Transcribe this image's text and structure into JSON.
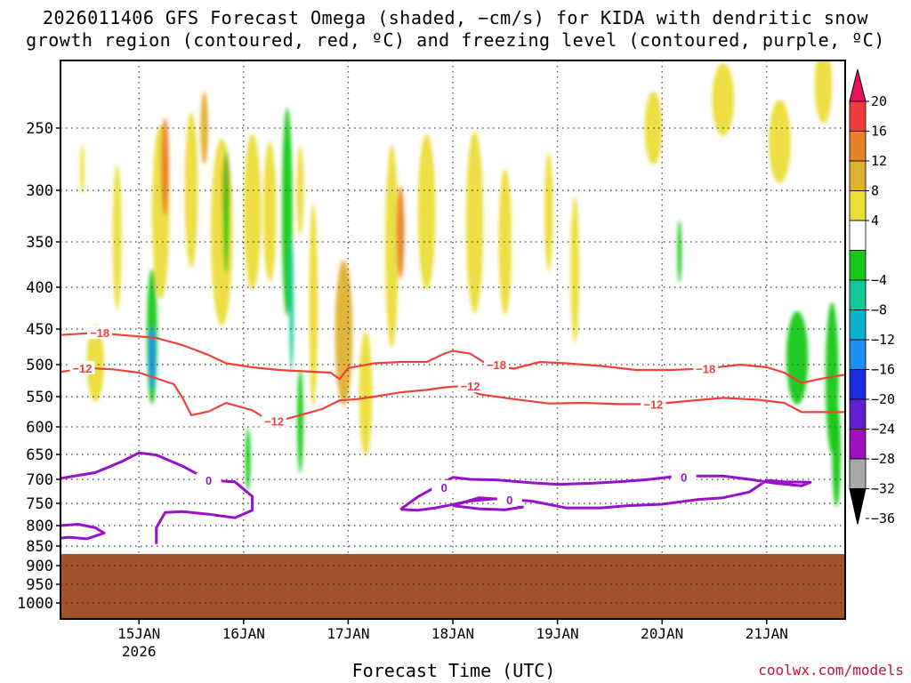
{
  "chart_data": {
    "type": "heatmap",
    "title": "2026011406 GFS Forecast Omega (shaded, −cm/s) for KIDA with dendritic snow growth region (contoured, red, ºC) and freezing level (contoured, purple, ºC)",
    "title_line1": "2026011406 GFS Forecast Omega (shaded, −cm/s) for KIDA with dendritic snow",
    "title_line2": "growth region (contoured, red, ºC) and freezing level (contoured, purple, ºC)",
    "xlabel": "Forecast Time (UTC)",
    "credit": "coolwx.com/models",
    "x_range_hours": [
      0,
      180
    ],
    "x_ticks": [
      {
        "label": "15JAN",
        "sublabel": "2026",
        "hour": 18
      },
      {
        "label": "16JAN",
        "hour": 42
      },
      {
        "label": "17JAN",
        "hour": 66
      },
      {
        "label": "18JAN",
        "hour": 90
      },
      {
        "label": "19JAN",
        "hour": 114
      },
      {
        "label": "20JAN",
        "hour": 138
      },
      {
        "label": "21JAN",
        "hour": 162
      }
    ],
    "y_ticks": [
      "250",
      "300",
      "350",
      "400",
      "450",
      "500",
      "550",
      "600",
      "650",
      "700",
      "750",
      "800",
      "850",
      "900",
      "950",
      "1000"
    ],
    "ylim_hpa": [
      200,
      1040
    ],
    "terrain_top_hpa": 870,
    "colorbar": {
      "labels": [
        "20",
        "16",
        "12",
        "8",
        "4",
        "−4",
        "−8",
        "−12",
        "−16",
        "−20",
        "−24",
        "−28",
        "−32",
        "−36"
      ],
      "colors": [
        "#e8105c",
        "#f03c3c",
        "#e8822a",
        "#e0b030",
        "#ebdc38",
        "#ffffff",
        "#18c818",
        "#14c896",
        "#0cb0cc",
        "#1a8ef0",
        "#1a2ee0",
        "#6020d0",
        "#9c10c0",
        "#a8a8a8",
        "#000000"
      ]
    },
    "colors": {
      "dgz": "#f0403c",
      "freezing": "#9810c8",
      "terrain": "#a0522d",
      "gridline": "#555555"
    },
    "dgz_contours": [
      {
        "label": "−18",
        "label_positions": [
          [
            9,
            0
          ],
          [
            100,
            1
          ],
          [
            148,
            1
          ]
        ],
        "points": [
          [
            0,
            458
          ],
          [
            8,
            455
          ],
          [
            14,
            458
          ],
          [
            22,
            462
          ],
          [
            28,
            472
          ],
          [
            34,
            486
          ],
          [
            38,
            498
          ],
          [
            44,
            504
          ],
          [
            50,
            508
          ],
          [
            56,
            510
          ],
          [
            62,
            512
          ],
          [
            64,
            522
          ],
          [
            66,
            505
          ],
          [
            72,
            498
          ],
          [
            78,
            496
          ],
          [
            84,
            496
          ],
          [
            88,
            484
          ],
          [
            90,
            480
          ],
          [
            94,
            484
          ],
          [
            98,
            500
          ],
          [
            104,
            506
          ],
          [
            110,
            496
          ],
          [
            116,
            498
          ],
          [
            124,
            502
          ],
          [
            132,
            508
          ],
          [
            140,
            508
          ],
          [
            148,
            506
          ],
          [
            156,
            500
          ],
          [
            162,
            504
          ],
          [
            166,
            512
          ],
          [
            170,
            528
          ],
          [
            174,
            522
          ],
          [
            180,
            515
          ]
        ]
      },
      {
        "label": "−12",
        "label_positions": [
          [
            5,
            0
          ],
          [
            49,
            1
          ],
          [
            94,
            1
          ],
          [
            136,
            1
          ]
        ],
        "points": [
          [
            0,
            511
          ],
          [
            6,
            505
          ],
          [
            12,
            507
          ],
          [
            18,
            512
          ],
          [
            22,
            521
          ],
          [
            26,
            530
          ],
          [
            28,
            552
          ],
          [
            30,
            580
          ],
          [
            34,
            574
          ],
          [
            38,
            560
          ],
          [
            44,
            572
          ],
          [
            48,
            590
          ],
          [
            52,
            586
          ],
          [
            56,
            578
          ],
          [
            60,
            570
          ],
          [
            64,
            556
          ],
          [
            68,
            554
          ],
          [
            72,
            550
          ],
          [
            78,
            543
          ],
          [
            84,
            539
          ],
          [
            88,
            535
          ],
          [
            92,
            533
          ],
          [
            96,
            546
          ],
          [
            104,
            554
          ],
          [
            112,
            561
          ],
          [
            120,
            560
          ],
          [
            128,
            562
          ],
          [
            136,
            562
          ],
          [
            144,
            557
          ],
          [
            152,
            552
          ],
          [
            160,
            555
          ],
          [
            166,
            560
          ],
          [
            170,
            575
          ],
          [
            174,
            575
          ],
          [
            180,
            575
          ]
        ]
      }
    ],
    "freezing_contours": [
      {
        "label": "0",
        "label_positions": [
          [
            34,
            1
          ]
        ],
        "points": [
          [
            0,
            698
          ],
          [
            8,
            686
          ],
          [
            14,
            664
          ],
          [
            18,
            647
          ],
          [
            22,
            651
          ],
          [
            28,
            673
          ],
          [
            34,
            702
          ],
          [
            40,
            705
          ],
          [
            44,
            735
          ],
          [
            44,
            765
          ],
          [
            40,
            782
          ],
          [
            34,
            774
          ],
          [
            28,
            768
          ],
          [
            24,
            770
          ],
          [
            22,
            805
          ],
          [
            22,
            845
          ]
        ]
      },
      {
        "label": "0",
        "label_positions": [
          [
            88,
            1
          ],
          [
            143,
            1
          ]
        ],
        "points": [
          [
            78,
            763
          ],
          [
            82,
            736
          ],
          [
            86,
            716
          ],
          [
            90,
            696
          ],
          [
            94,
            700
          ],
          [
            100,
            701
          ],
          [
            108,
            707
          ],
          [
            114,
            710
          ],
          [
            122,
            708
          ],
          [
            128,
            705
          ],
          [
            134,
            701
          ],
          [
            140,
            695
          ],
          [
            146,
            693
          ],
          [
            152,
            693
          ],
          [
            158,
            700
          ],
          [
            164,
            708
          ],
          [
            170,
            713
          ],
          [
            172,
            706
          ],
          [
            166,
            705
          ],
          [
            162,
            702
          ],
          [
            158,
            726
          ],
          [
            152,
            738
          ],
          [
            146,
            742
          ],
          [
            138,
            752
          ],
          [
            130,
            755
          ],
          [
            124,
            760
          ],
          [
            116,
            760
          ],
          [
            108,
            745
          ],
          [
            100,
            740
          ],
          [
            94,
            745
          ],
          [
            86,
            760
          ],
          [
            82,
            765
          ],
          [
            78,
            763
          ]
        ]
      },
      {
        "label": "0",
        "label_positions": [
          [
            103,
            0
          ]
        ],
        "points": [
          [
            90,
            755
          ],
          [
            96,
            738
          ],
          [
            102,
            742
          ],
          [
            106,
            758
          ],
          [
            102,
            764
          ],
          [
            96,
            762
          ],
          [
            90,
            755
          ]
        ]
      },
      {
        "label": "0",
        "label_positions": [],
        "points": [
          [
            0,
            800
          ],
          [
            4,
            797
          ],
          [
            8,
            805
          ],
          [
            10,
            818
          ],
          [
            6,
            832
          ],
          [
            2,
            828
          ],
          [
            0,
            830
          ]
        ]
      }
    ],
    "omega_blobs": [
      {
        "hour": 5,
        "hpa": 282,
        "w": 0.5,
        "h": 56,
        "value": 4
      },
      {
        "hour": 13,
        "hpa": 345,
        "w": 1.0,
        "h": 164,
        "value": 4
      },
      {
        "hour": 8,
        "hpa": 498,
        "w": 2.0,
        "h": 86,
        "value": 4
      },
      {
        "hour": 23,
        "hpa": 320,
        "w": 2.0,
        "h": 196,
        "value": 4
      },
      {
        "hour": 24,
        "hpa": 280,
        "w": 0.9,
        "h": 110,
        "value": 12
      },
      {
        "hour": 30,
        "hpa": 300,
        "w": 1.5,
        "h": 175,
        "value": 4
      },
      {
        "hour": 33,
        "hpa": 250,
        "w": 0.9,
        "h": 82,
        "value": 8
      },
      {
        "hour": 37,
        "hpa": 340,
        "w": 2.5,
        "h": 210,
        "value": 4
      },
      {
        "hour": 38,
        "hpa": 300,
        "w": 0.9,
        "h": 82,
        "value": 12
      },
      {
        "hour": 44,
        "hpa": 320,
        "w": 2.0,
        "h": 175,
        "value": 4
      },
      {
        "hour": 48,
        "hpa": 320,
        "w": 1.5,
        "h": 158,
        "value": 4
      },
      {
        "hour": 55,
        "hpa": 300,
        "w": 0.8,
        "h": 100,
        "value": 4
      },
      {
        "hour": 58,
        "hpa": 420,
        "w": 1.0,
        "h": 228,
        "value": 4
      },
      {
        "hour": 65,
        "hpa": 455,
        "w": 2.0,
        "h": 164,
        "value": 8
      },
      {
        "hour": 70,
        "hpa": 545,
        "w": 1.5,
        "h": 140,
        "value": 4
      },
      {
        "hour": 76,
        "hpa": 355,
        "w": 1.5,
        "h": 228,
        "value": 4
      },
      {
        "hour": 78,
        "hpa": 340,
        "w": 0.9,
        "h": 105,
        "value": 12
      },
      {
        "hour": 84,
        "hpa": 320,
        "w": 2.0,
        "h": 175,
        "value": 4
      },
      {
        "hour": 95,
        "hpa": 330,
        "w": 2.0,
        "h": 205,
        "value": 4
      },
      {
        "hour": 102,
        "hpa": 350,
        "w": 1.5,
        "h": 164,
        "value": 4
      },
      {
        "hour": 112,
        "hpa": 320,
        "w": 1.0,
        "h": 133,
        "value": 4
      },
      {
        "hour": 118,
        "hpa": 380,
        "w": 1.0,
        "h": 164,
        "value": 4
      },
      {
        "hour": 136,
        "hpa": 250,
        "w": 2.0,
        "h": 82,
        "value": 4
      },
      {
        "hour": 152,
        "hpa": 230,
        "w": 2.5,
        "h": 82,
        "value": 4
      },
      {
        "hour": 165,
        "hpa": 260,
        "w": 2.5,
        "h": 94,
        "value": 4
      },
      {
        "hour": 175,
        "hpa": 220,
        "w": 2.0,
        "h": 88,
        "value": 4
      },
      {
        "hour": 21,
        "hpa": 460,
        "w": 1.2,
        "h": 153,
        "value": -8
      },
      {
        "hour": 21,
        "hpa": 490,
        "w": 0.7,
        "h": 70,
        "value": -20
      },
      {
        "hour": 38,
        "hpa": 320,
        "w": 0.7,
        "h": 140,
        "value": -8
      },
      {
        "hour": 52,
        "hpa": 320,
        "w": 1.2,
        "h": 234,
        "value": -8
      },
      {
        "hour": 53,
        "hpa": 420,
        "w": 0.5,
        "h": 152,
        "value": -12
      },
      {
        "hour": 55,
        "hpa": 590,
        "w": 0.7,
        "h": 117,
        "value": -8
      },
      {
        "hour": 43,
        "hpa": 660,
        "w": 0.6,
        "h": 70,
        "value": -8
      },
      {
        "hour": 142,
        "hpa": 360,
        "w": 0.5,
        "h": 70,
        "value": -8
      },
      {
        "hour": 169,
        "hpa": 490,
        "w": 2.5,
        "h": 105,
        "value": -8
      },
      {
        "hour": 177,
        "hpa": 520,
        "w": 1.5,
        "h": 170,
        "value": -8
      },
      {
        "hour": 178,
        "hpa": 650,
        "w": 1.0,
        "h": 117,
        "value": -8
      }
    ]
  }
}
